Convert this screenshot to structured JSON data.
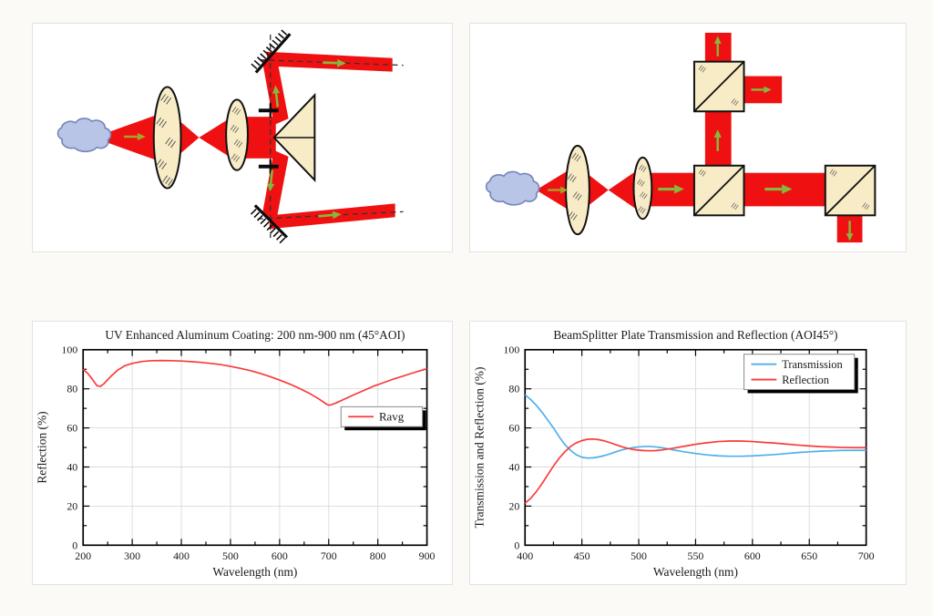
{
  "page": {
    "background": "#FBFAF7",
    "card_background": "#FFFFFF",
    "card_border": "#E4E2DE"
  },
  "diagram_colors": {
    "beam": "#EF1111",
    "optic_fill": "#F8ECC6",
    "optic_outline": "#111111",
    "cloud_fill": "#B9C5E6",
    "cloud_stroke": "#7585B8",
    "arrow_green": "#85B93E",
    "arrow_olive": "#A8A028",
    "hatch": "#555555",
    "dash": "#333333"
  },
  "chart_data": [
    {
      "id": "uv-aluminum-coating",
      "type": "line",
      "title": "UV Enhanced Aluminum Coating: 200 nm-900 nm (45°AOI)",
      "xlabel": "Wavelength (nm)",
      "ylabel": "Reflection (%)",
      "xlim": [
        200,
        900
      ],
      "ylim": [
        0,
        100
      ],
      "x_ticks": [
        200,
        300,
        400,
        500,
        600,
        700,
        800,
        900
      ],
      "y_ticks": [
        0,
        20,
        40,
        60,
        80,
        100
      ],
      "x_minor_step": 50,
      "y_minor_step": 10,
      "grid": true,
      "legend_position": "middle-right-inside",
      "legend_entries": [
        "Ravg"
      ],
      "series": [
        {
          "name": "Ravg",
          "color": "#FA3B3B",
          "points": [
            [
              200,
              90.0
            ],
            [
              210,
              87.8
            ],
            [
              220,
              84.5
            ],
            [
              228,
              81.6
            ],
            [
              235,
              81.2
            ],
            [
              242,
              82.5
            ],
            [
              255,
              86.0
            ],
            [
              270,
              89.5
            ],
            [
              285,
              91.8
            ],
            [
              300,
              93.0
            ],
            [
              320,
              94.0
            ],
            [
              340,
              94.4
            ],
            [
              360,
              94.5
            ],
            [
              380,
              94.4
            ],
            [
              400,
              94.2
            ],
            [
              420,
              93.9
            ],
            [
              440,
              93.5
            ],
            [
              460,
              93.0
            ],
            [
              480,
              92.4
            ],
            [
              500,
              91.5
            ],
            [
              520,
              90.5
            ],
            [
              540,
              89.3
            ],
            [
              560,
              87.9
            ],
            [
              580,
              86.3
            ],
            [
              600,
              84.5
            ],
            [
              620,
              82.5
            ],
            [
              640,
              80.3
            ],
            [
              660,
              77.8
            ],
            [
              680,
              74.8
            ],
            [
              695,
              72.2
            ],
            [
              700,
              71.6
            ],
            [
              705,
              71.8
            ],
            [
              715,
              72.8
            ],
            [
              730,
              74.5
            ],
            [
              750,
              76.8
            ],
            [
              770,
              79.0
            ],
            [
              790,
              81.2
            ],
            [
              810,
              83.0
            ],
            [
              830,
              84.8
            ],
            [
              850,
              86.4
            ],
            [
              870,
              88.0
            ],
            [
              885,
              89.2
            ],
            [
              900,
              90.2
            ]
          ]
        }
      ]
    },
    {
      "id": "beamsplitter-plate",
      "type": "line",
      "title": "BeamSplitter Plate Transmission and Reflection (AOI45°)",
      "xlabel": "Wavelength (nm)",
      "ylabel": "Transmission and Reflection (%)",
      "xlim": [
        400,
        700
      ],
      "ylim": [
        0,
        100
      ],
      "x_ticks": [
        400,
        450,
        500,
        550,
        600,
        650,
        700
      ],
      "y_ticks": [
        0,
        20,
        40,
        60,
        80,
        100
      ],
      "x_minor_step": 25,
      "y_minor_step": 10,
      "grid": true,
      "legend_position": "top-right-inside",
      "legend_entries": [
        "Transmission",
        "Reflection"
      ],
      "series": [
        {
          "name": "Transmission",
          "color": "#4FB0E8",
          "points": [
            [
              400,
              77.0
            ],
            [
              405,
              74.5
            ],
            [
              410,
              71.5
            ],
            [
              415,
              68.0
            ],
            [
              420,
              64.0
            ],
            [
              425,
              60.0
            ],
            [
              430,
              55.5
            ],
            [
              435,
              51.5
            ],
            [
              440,
              48.5
            ],
            [
              445,
              46.3
            ],
            [
              450,
              45.0
            ],
            [
              455,
              44.6
            ],
            [
              460,
              44.7
            ],
            [
              465,
              45.2
            ],
            [
              470,
              45.9
            ],
            [
              475,
              46.8
            ],
            [
              480,
              47.8
            ],
            [
              485,
              48.7
            ],
            [
              490,
              49.4
            ],
            [
              495,
              49.9
            ],
            [
              500,
              50.3
            ],
            [
              505,
              50.5
            ],
            [
              510,
              50.5
            ],
            [
              515,
              50.3
            ],
            [
              520,
              49.9
            ],
            [
              525,
              49.4
            ],
            [
              530,
              48.8
            ],
            [
              540,
              47.8
            ],
            [
              550,
              46.9
            ],
            [
              560,
              46.2
            ],
            [
              570,
              45.7
            ],
            [
              580,
              45.5
            ],
            [
              590,
              45.5
            ],
            [
              600,
              45.7
            ],
            [
              610,
              46.0
            ],
            [
              620,
              46.4
            ],
            [
              630,
              46.9
            ],
            [
              640,
              47.4
            ],
            [
              650,
              47.8
            ],
            [
              660,
              48.1
            ],
            [
              670,
              48.3
            ],
            [
              680,
              48.5
            ],
            [
              690,
              48.5
            ],
            [
              700,
              48.5
            ]
          ]
        },
        {
          "name": "Reflection",
          "color": "#FA3B3B",
          "points": [
            [
              400,
              21.5
            ],
            [
              405,
              24.0
            ],
            [
              410,
              27.5
            ],
            [
              415,
              31.5
            ],
            [
              420,
              36.0
            ],
            [
              425,
              40.5
            ],
            [
              430,
              44.5
            ],
            [
              435,
              47.8
            ],
            [
              440,
              50.5
            ],
            [
              445,
              52.3
            ],
            [
              450,
              53.5
            ],
            [
              455,
              54.2
            ],
            [
              460,
              54.3
            ],
            [
              465,
              54.0
            ],
            [
              470,
              53.3
            ],
            [
              475,
              52.4
            ],
            [
              480,
              51.4
            ],
            [
              485,
              50.4
            ],
            [
              490,
              49.6
            ],
            [
              495,
              49.0
            ],
            [
              500,
              48.6
            ],
            [
              505,
              48.4
            ],
            [
              510,
              48.3
            ],
            [
              515,
              48.4
            ],
            [
              520,
              48.7
            ],
            [
              525,
              49.1
            ],
            [
              530,
              49.6
            ],
            [
              540,
              50.6
            ],
            [
              550,
              51.6
            ],
            [
              560,
              52.4
            ],
            [
              570,
              53.0
            ],
            [
              580,
              53.3
            ],
            [
              590,
              53.3
            ],
            [
              600,
              53.0
            ],
            [
              610,
              52.6
            ],
            [
              620,
              52.2
            ],
            [
              630,
              51.7
            ],
            [
              640,
              51.2
            ],
            [
              650,
              50.8
            ],
            [
              660,
              50.4
            ],
            [
              670,
              50.2
            ],
            [
              680,
              50.0
            ],
            [
              690,
              49.9
            ],
            [
              700,
              49.9
            ]
          ]
        }
      ]
    }
  ]
}
